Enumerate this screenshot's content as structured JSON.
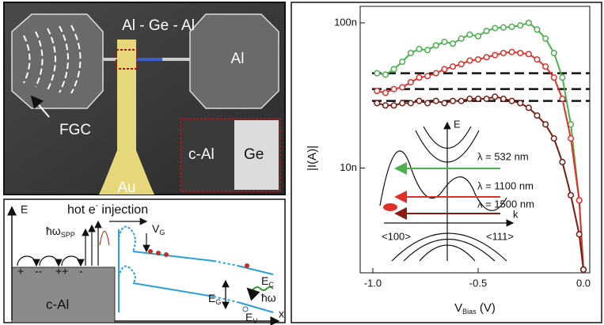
{
  "sem_image": {
    "title": "Al - Ge - Al",
    "right_pad": "Al",
    "grating": "FGC",
    "inset_left": "c-Al",
    "inset_right": "Ge",
    "gate": "Au"
  },
  "band_diagram": {
    "energy_axis": "E",
    "position_axis": "x",
    "injection": {
      "main": "hot e",
      "sup": "-",
      "rest": " injection"
    },
    "plasmon": {
      "main": "ħω",
      "sub": "SPP"
    },
    "gate_voltage": {
      "main": "V",
      "sub": "G"
    },
    "conduction": {
      "main": "E",
      "sub": "C"
    },
    "gap": {
      "main": "E",
      "sub": "G"
    },
    "photon": "ħω",
    "valence": {
      "main": "E",
      "sub": "V"
    },
    "metal": "c-Al",
    "charges": [
      "+",
      "--",
      "++",
      "-"
    ]
  },
  "chart_data": {
    "type": "line",
    "log_y": true,
    "xlabel": {
      "main": "V",
      "sub": "Bias",
      "rest": " (V)"
    },
    "ylabel": "|I(A)|",
    "xlim": [
      -1.06,
      0.03
    ],
    "ylim": [
      1.9e-09,
      1.3e-07
    ],
    "xticks": [
      {
        "value": -1,
        "label": "-1.0"
      },
      -0.5,
      {
        "value": 0,
        "label": "0.0"
      }
    ],
    "yticks": [
      {
        "value": 1e-08,
        "label": "10n"
      },
      {
        "value": 1e-07,
        "label": "100n"
      }
    ],
    "x": [
      -0.98,
      -0.94,
      -0.9,
      -0.86,
      -0.82,
      -0.78,
      -0.74,
      -0.7,
      -0.66,
      -0.62,
      -0.58,
      -0.54,
      -0.5,
      -0.46,
      -0.42,
      -0.38,
      -0.34,
      -0.3,
      -0.26,
      -0.22,
      -0.18,
      -0.14,
      -0.1,
      -0.06,
      -0.02,
      0.0
    ],
    "series": [
      {
        "color": "#4caf50",
        "values": [
          4.5e-08,
          4.4e-08,
          4.8e-08,
          5.4e-08,
          6.2e-08,
          6.6e-08,
          6.5e-08,
          7e-08,
          7.4e-08,
          7.2e-08,
          7.8e-08,
          8.3e-08,
          8.1e-08,
          8.8e-08,
          9.2e-08,
          9.3e-08,
          9.4e-08,
          9.6e-08,
          1e-07,
          9e-08,
          7.8e-08,
          6.2e-08,
          4.2e-08,
          2e-08,
          6e-09,
          2e-09
        ]
      },
      {
        "color": "#e0302a",
        "values": [
          3.4e-08,
          3.3e-08,
          3.5e-08,
          3.6e-08,
          3.9e-08,
          4.2e-08,
          4.3e-08,
          4.5e-08,
          4.8e-08,
          5e-08,
          5.2e-08,
          5.5e-08,
          5.6e-08,
          5.8e-08,
          6e-08,
          6.2e-08,
          6.3e-08,
          6.2e-08,
          6.1e-08,
          5.6e-08,
          5e-08,
          4.2e-08,
          3e-08,
          1.6e-08,
          6e-09,
          2e-09
        ]
      },
      {
        "color": "#7a1a12",
        "values": [
          2.8e-08,
          2.7e-08,
          2.7e-08,
          2.8e-08,
          2.8e-08,
          2.9e-08,
          2.8e-08,
          2.9e-08,
          2.8e-08,
          2.9e-08,
          2.9e-08,
          3e-08,
          3e-08,
          3e-08,
          3.1e-08,
          3e-08,
          2.9e-08,
          2.8e-08,
          2.6e-08,
          2.3e-08,
          2e-08,
          1.6e-08,
          1.1e-08,
          6.5e-09,
          3.5e-09,
          2e-09
        ]
      }
    ],
    "hlines": [
      4.5e-08,
      3.5e-08,
      2.9e-08
    ],
    "inset": {
      "energy_axis": "E",
      "momentum_axis": "k",
      "left_direction": "<100>",
      "right_direction": "<111>",
      "arrows": [
        {
          "label": "λ = 532 nm",
          "color": "#4caf50"
        },
        {
          "label": "λ = 1100 nm",
          "color": "#e0302a"
        },
        {
          "label": "λ = 1500 nm",
          "color": "#8b1a10"
        }
      ]
    }
  }
}
